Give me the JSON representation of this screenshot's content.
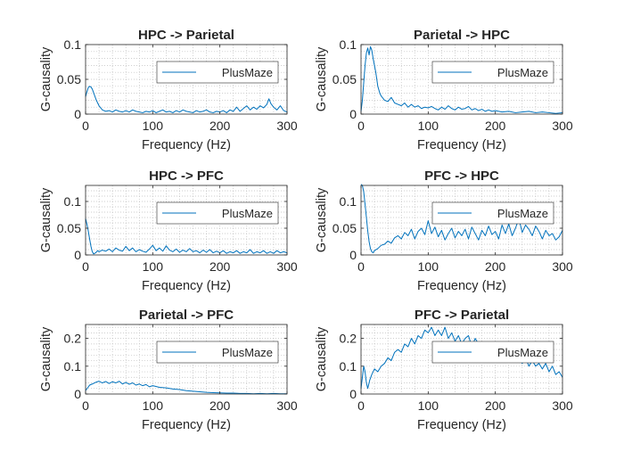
{
  "figure": {
    "series_color": "#0072BD",
    "axis_color": "#262626",
    "grid_color": "#BFBFBF"
  },
  "chart_data": [
    {
      "type": "line",
      "title": "HPC -> Parietal",
      "xlabel": "Frequency (Hz)",
      "ylabel": "G-causality",
      "xlim": [
        0,
        300
      ],
      "ylim": [
        0,
        0.1
      ],
      "xticks": [
        0,
        100,
        200,
        300
      ],
      "xtick_labels": [
        "0",
        "100",
        "200",
        "300"
      ],
      "yticks": [
        0,
        0.05,
        0.1
      ],
      "ytick_labels": [
        "0",
        "0.05",
        "0.1"
      ],
      "grid": "minor-dotted",
      "legend": "top-right",
      "series": [
        {
          "name": "PlusMaze",
          "x": [
            0,
            2,
            4,
            6,
            8,
            10,
            13,
            16,
            20,
            25,
            30,
            35,
            40,
            45,
            50,
            55,
            60,
            65,
            70,
            75,
            80,
            85,
            90,
            95,
            100,
            105,
            110,
            115,
            120,
            125,
            130,
            135,
            140,
            145,
            150,
            155,
            160,
            165,
            170,
            175,
            180,
            185,
            190,
            195,
            200,
            205,
            210,
            215,
            220,
            225,
            230,
            235,
            240,
            245,
            250,
            255,
            260,
            265,
            270,
            273,
            276,
            280,
            285,
            290,
            295,
            300
          ],
          "y": [
            0.025,
            0.032,
            0.038,
            0.04,
            0.039,
            0.036,
            0.028,
            0.02,
            0.012,
            0.006,
            0.004,
            0.005,
            0.003,
            0.006,
            0.004,
            0.003,
            0.005,
            0.003,
            0.006,
            0.004,
            0.003,
            0.002,
            0.004,
            0.003,
            0.005,
            0.002,
            0.004,
            0.006,
            0.003,
            0.004,
            0.002,
            0.005,
            0.003,
            0.006,
            0.004,
            0.003,
            0.002,
            0.005,
            0.003,
            0.004,
            0.006,
            0.003,
            0.002,
            0.004,
            0.003,
            0.005,
            0.002,
            0.006,
            0.004,
            0.01,
            0.004,
            0.008,
            0.012,
            0.006,
            0.01,
            0.007,
            0.012,
            0.009,
            0.014,
            0.022,
            0.015,
            0.01,
            0.006,
            0.012,
            0.005,
            0.003
          ]
        }
      ]
    },
    {
      "type": "line",
      "title": "Parietal -> HPC",
      "xlabel": "Frequency (Hz)",
      "ylabel": "G-causality",
      "xlim": [
        0,
        300
      ],
      "ylim": [
        0,
        0.1
      ],
      "xticks": [
        0,
        100,
        200,
        300
      ],
      "xtick_labels": [
        "0",
        "100",
        "200",
        "300"
      ],
      "yticks": [
        0,
        0.05,
        0.1
      ],
      "ytick_labels": [
        "0",
        "0.05",
        "0.1"
      ],
      "grid": "minor-dotted",
      "legend": "top-right",
      "series": [
        {
          "name": "PlusMaze",
          "x": [
            0,
            2,
            4,
            6,
            8,
            10,
            12,
            14,
            16,
            18,
            20,
            22,
            25,
            28,
            30,
            35,
            40,
            45,
            50,
            55,
            60,
            65,
            70,
            75,
            80,
            85,
            90,
            95,
            100,
            105,
            110,
            115,
            120,
            125,
            130,
            135,
            140,
            145,
            150,
            155,
            160,
            165,
            170,
            175,
            180,
            185,
            190,
            195,
            200,
            210,
            220,
            230,
            240,
            250,
            260,
            270,
            280,
            290,
            300
          ],
          "y": [
            0.004,
            0.02,
            0.045,
            0.07,
            0.088,
            0.095,
            0.085,
            0.097,
            0.092,
            0.08,
            0.07,
            0.06,
            0.04,
            0.03,
            0.026,
            0.02,
            0.018,
            0.024,
            0.016,
            0.014,
            0.012,
            0.016,
            0.01,
            0.014,
            0.01,
            0.012,
            0.008,
            0.01,
            0.009,
            0.011,
            0.008,
            0.006,
            0.01,
            0.007,
            0.012,
            0.008,
            0.006,
            0.01,
            0.007,
            0.008,
            0.011,
            0.006,
            0.008,
            0.005,
            0.007,
            0.004,
            0.006,
            0.004,
            0.005,
            0.003,
            0.004,
            0.002,
            0.003,
            0.004,
            0.002,
            0.003,
            0.002,
            0.001,
            0.002
          ]
        }
      ]
    },
    {
      "type": "line",
      "title": "HPC -> PFC",
      "xlabel": "Frequency (Hz)",
      "ylabel": "G-causality",
      "xlim": [
        0,
        300
      ],
      "ylim": [
        0,
        0.13
      ],
      "xticks": [
        0,
        100,
        200,
        300
      ],
      "xtick_labels": [
        "0",
        "100",
        "200",
        "300"
      ],
      "yticks": [
        0,
        0.05,
        0.1
      ],
      "ytick_labels": [
        "0",
        "0.05",
        "0.1"
      ],
      "grid": "minor-dotted",
      "legend": "top-right",
      "series": [
        {
          "name": "PlusMaze",
          "x": [
            0,
            2,
            4,
            6,
            8,
            10,
            12,
            15,
            18,
            20,
            25,
            30,
            35,
            40,
            45,
            50,
            55,
            60,
            65,
            70,
            75,
            80,
            85,
            90,
            95,
            100,
            105,
            110,
            115,
            120,
            125,
            130,
            135,
            140,
            145,
            150,
            155,
            160,
            165,
            170,
            175,
            180,
            185,
            190,
            195,
            200,
            205,
            210,
            215,
            220,
            225,
            230,
            235,
            240,
            245,
            250,
            255,
            260,
            265,
            270,
            275,
            280,
            285,
            290,
            295,
            300
          ],
          "y": [
            0.068,
            0.058,
            0.045,
            0.03,
            0.016,
            0.006,
            0.002,
            0.004,
            0.008,
            0.006,
            0.009,
            0.007,
            0.011,
            0.006,
            0.013,
            0.009,
            0.007,
            0.016,
            0.008,
            0.013,
            0.006,
            0.01,
            0.007,
            0.005,
            0.011,
            0.018,
            0.008,
            0.013,
            0.007,
            0.017,
            0.009,
            0.006,
            0.011,
            0.005,
            0.009,
            0.006,
            0.012,
            0.006,
            0.008,
            0.004,
            0.009,
            0.005,
            0.01,
            0.004,
            0.007,
            0.004,
            0.008,
            0.003,
            0.006,
            0.004,
            0.008,
            0.003,
            0.006,
            0.004,
            0.01,
            0.003,
            0.006,
            0.004,
            0.008,
            0.003,
            0.006,
            0.003,
            0.008,
            0.004,
            0.006,
            0.004
          ]
        }
      ]
    },
    {
      "type": "line",
      "title": "PFC -> HPC",
      "xlabel": "Frequency (Hz)",
      "ylabel": "G-causality",
      "xlim": [
        0,
        300
      ],
      "ylim": [
        0,
        0.13
      ],
      "xticks": [
        0,
        100,
        200,
        300
      ],
      "xtick_labels": [
        "0",
        "100",
        "200",
        "300"
      ],
      "yticks": [
        0,
        0.05,
        0.1
      ],
      "ytick_labels": [
        "0",
        "0.05",
        "0.1"
      ],
      "grid": "minor-dotted",
      "legend": "top-right",
      "series": [
        {
          "name": "PlusMaze",
          "x": [
            0,
            2,
            4,
            6,
            8,
            10,
            12,
            14,
            16,
            18,
            20,
            25,
            30,
            35,
            40,
            45,
            50,
            55,
            60,
            65,
            70,
            75,
            80,
            85,
            90,
            95,
            100,
            105,
            110,
            115,
            120,
            125,
            130,
            135,
            140,
            145,
            150,
            155,
            160,
            165,
            170,
            175,
            180,
            185,
            190,
            195,
            200,
            205,
            210,
            215,
            220,
            225,
            230,
            235,
            240,
            245,
            250,
            255,
            260,
            265,
            270,
            275,
            280,
            285,
            290,
            295,
            300
          ],
          "y": [
            0.132,
            0.13,
            0.118,
            0.095,
            0.07,
            0.045,
            0.025,
            0.012,
            0.006,
            0.004,
            0.008,
            0.012,
            0.018,
            0.02,
            0.026,
            0.022,
            0.032,
            0.036,
            0.03,
            0.042,
            0.036,
            0.048,
            0.03,
            0.044,
            0.05,
            0.038,
            0.064,
            0.04,
            0.052,
            0.034,
            0.046,
            0.028,
            0.04,
            0.05,
            0.032,
            0.044,
            0.036,
            0.048,
            0.03,
            0.052,
            0.04,
            0.028,
            0.046,
            0.036,
            0.054,
            0.038,
            0.044,
            0.03,
            0.056,
            0.04,
            0.058,
            0.036,
            0.05,
            0.068,
            0.042,
            0.056,
            0.048,
            0.036,
            0.054,
            0.044,
            0.03,
            0.046,
            0.036,
            0.04,
            0.028,
            0.034,
            0.046
          ]
        }
      ]
    },
    {
      "type": "line",
      "title": "Parietal -> PFC",
      "xlabel": "Frequency (Hz)",
      "ylabel": "G-causality",
      "xlim": [
        0,
        300
      ],
      "ylim": [
        0,
        0.25
      ],
      "xticks": [
        0,
        100,
        200,
        300
      ],
      "xtick_labels": [
        "0",
        "100",
        "200",
        "300"
      ],
      "yticks": [
        0,
        0.1,
        0.2
      ],
      "ytick_labels": [
        "0",
        "0.1",
        "0.2"
      ],
      "grid": "minor-dotted",
      "legend": "top-right",
      "series": [
        {
          "name": "PlusMaze",
          "x": [
            0,
            3,
            6,
            10,
            15,
            20,
            25,
            30,
            35,
            40,
            45,
            50,
            55,
            60,
            65,
            70,
            75,
            80,
            85,
            90,
            95,
            100,
            110,
            120,
            130,
            140,
            150,
            160,
            170,
            180,
            190,
            200,
            210,
            220,
            230,
            240,
            250,
            260,
            270,
            280,
            290,
            300
          ],
          "y": [
            0.012,
            0.022,
            0.032,
            0.036,
            0.042,
            0.046,
            0.04,
            0.045,
            0.038,
            0.044,
            0.04,
            0.046,
            0.036,
            0.042,
            0.035,
            0.04,
            0.032,
            0.036,
            0.03,
            0.034,
            0.026,
            0.03,
            0.024,
            0.022,
            0.018,
            0.016,
            0.012,
            0.01,
            0.008,
            0.006,
            0.005,
            0.004,
            0.003,
            0.003,
            0.002,
            0.002,
            0.001,
            0.002,
            0.001,
            0.002,
            0.001,
            0.001
          ]
        }
      ]
    },
    {
      "type": "line",
      "title": "PFC -> Parietal",
      "xlabel": "Frequency (Hz)",
      "ylabel": "G-causality",
      "xlim": [
        0,
        300
      ],
      "ylim": [
        0,
        0.25
      ],
      "xticks": [
        0,
        100,
        200,
        300
      ],
      "xtick_labels": [
        "0",
        "100",
        "200",
        "300"
      ],
      "yticks": [
        0,
        0.1,
        0.2
      ],
      "ytick_labels": [
        "0",
        "0.1",
        "0.2"
      ],
      "grid": "minor-dotted",
      "legend": "top-right",
      "series": [
        {
          "name": "PlusMaze",
          "x": [
            0,
            2,
            4,
            6,
            8,
            10,
            13,
            16,
            20,
            25,
            30,
            35,
            40,
            45,
            50,
            55,
            60,
            65,
            70,
            75,
            80,
            85,
            90,
            95,
            100,
            105,
            110,
            115,
            120,
            125,
            130,
            135,
            140,
            145,
            150,
            155,
            160,
            165,
            170,
            175,
            180,
            185,
            190,
            195,
            200,
            205,
            210,
            215,
            220,
            225,
            230,
            235,
            240,
            245,
            250,
            255,
            260,
            265,
            270,
            275,
            280,
            285,
            290,
            295,
            300
          ],
          "y": [
            0.02,
            0.06,
            0.1,
            0.08,
            0.04,
            0.02,
            0.05,
            0.07,
            0.09,
            0.08,
            0.1,
            0.11,
            0.13,
            0.12,
            0.15,
            0.16,
            0.15,
            0.18,
            0.17,
            0.2,
            0.18,
            0.21,
            0.2,
            0.23,
            0.22,
            0.24,
            0.21,
            0.23,
            0.21,
            0.24,
            0.2,
            0.22,
            0.19,
            0.21,
            0.18,
            0.2,
            0.21,
            0.17,
            0.2,
            0.18,
            0.16,
            0.18,
            0.15,
            0.17,
            0.14,
            0.16,
            0.15,
            0.13,
            0.15,
            0.12,
            0.14,
            0.13,
            0.11,
            0.13,
            0.1,
            0.12,
            0.1,
            0.11,
            0.09,
            0.11,
            0.08,
            0.1,
            0.07,
            0.08,
            0.06
          ]
        }
      ]
    }
  ]
}
